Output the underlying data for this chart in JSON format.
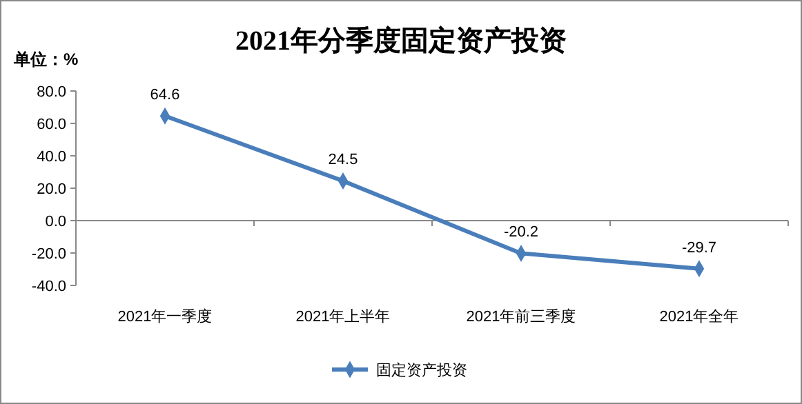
{
  "chart_data": {
    "type": "line",
    "title": "2021年分季度固定资产投资",
    "ylabel": "单位：%",
    "categories": [
      "2021年一季度",
      "2021年上半年",
      "2021年前三季度",
      "2021年全年"
    ],
    "series": [
      {
        "name": "固定资产投资",
        "color": "#4a7ebb",
        "values": [
          64.6,
          24.5,
          -20.2,
          -29.7
        ]
      }
    ],
    "ylim": [
      -40,
      80
    ],
    "yticks": [
      {
        "value": 80,
        "label": "80.0"
      },
      {
        "value": 60,
        "label": "60.0"
      },
      {
        "value": 40,
        "label": "40.0"
      },
      {
        "value": 20,
        "label": "20.0"
      },
      {
        "value": 0,
        "label": "0.0"
      },
      {
        "value": -20,
        "label": "-20.0"
      },
      {
        "value": -40,
        "label": "-40.0"
      }
    ],
    "data_labels": true,
    "marker": "diamond",
    "line_style": "solid",
    "legend": "bottom"
  }
}
